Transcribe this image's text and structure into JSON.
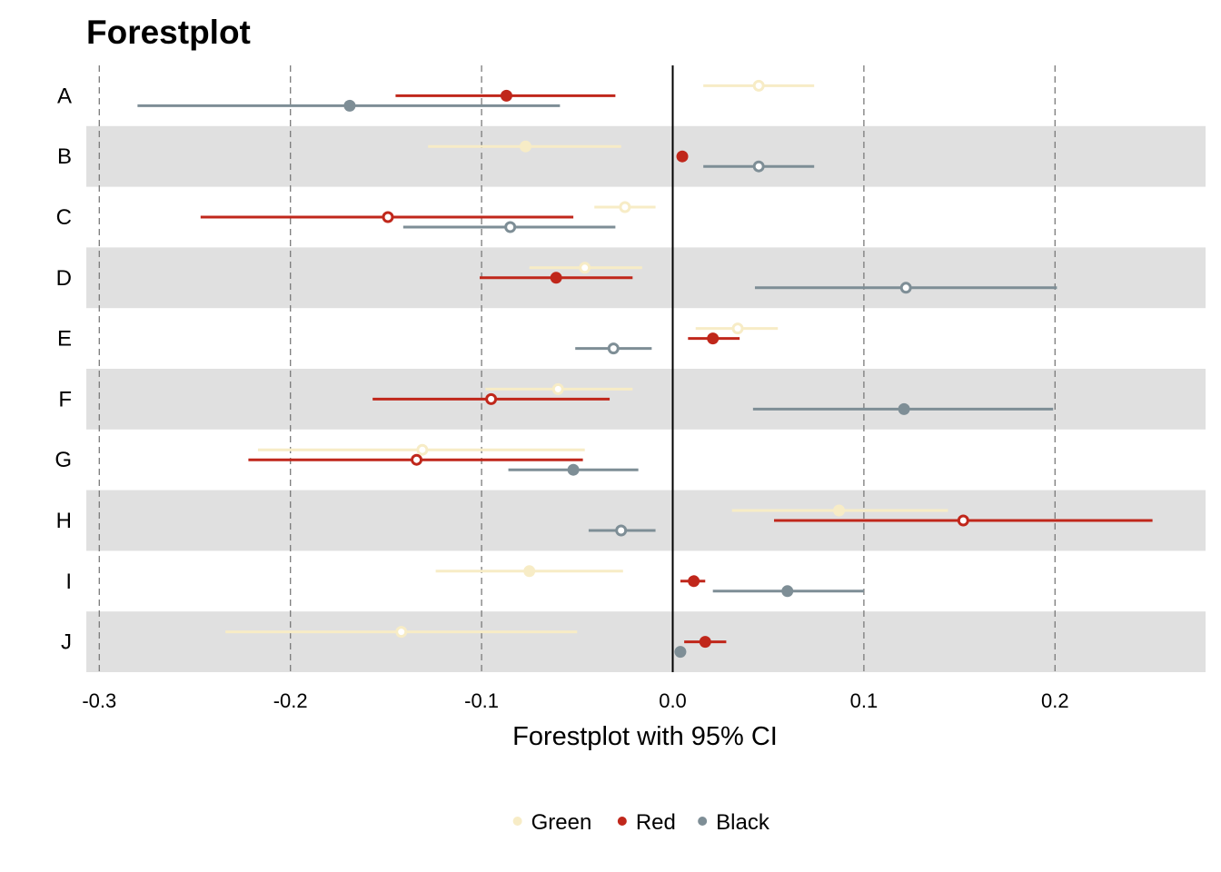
{
  "chart_data": {
    "type": "forestplot",
    "title": "Forestplot",
    "xlabel": "Forestplot with 95% CI",
    "ylabel": "",
    "xlim": [
      -0.307,
      0.278
    ],
    "x_ticks": [
      -0.3,
      -0.2,
      -0.1,
      0.0,
      0.1,
      0.2
    ],
    "x_tick_labels": [
      "-0.3",
      "-0.2",
      "-0.1",
      "0.0",
      "0.1",
      "0.2"
    ],
    "reference_line": 0.0,
    "grid": "dashed vertical lines at major ticks",
    "alternating_row_bands": true,
    "band_color": "#e0e0e0",
    "legend_position": "bottom",
    "categories": [
      "A",
      "B",
      "C",
      "D",
      "E",
      "F",
      "G",
      "H",
      "I",
      "J"
    ],
    "series": [
      {
        "name": "Green",
        "color": "#f7ecc6",
        "points": [
          {
            "estimate": 0.045,
            "lower": 0.016,
            "upper": 0.074,
            "significant": false
          },
          {
            "estimate": -0.077,
            "lower": -0.128,
            "upper": -0.027,
            "significant": true
          },
          {
            "estimate": -0.025,
            "lower": -0.041,
            "upper": -0.009,
            "significant": false
          },
          {
            "estimate": -0.046,
            "lower": -0.075,
            "upper": -0.016,
            "significant": false
          },
          {
            "estimate": 0.034,
            "lower": 0.012,
            "upper": 0.055,
            "significant": false
          },
          {
            "estimate": -0.06,
            "lower": -0.098,
            "upper": -0.021,
            "significant": false
          },
          {
            "estimate": -0.131,
            "lower": -0.217,
            "upper": -0.046,
            "significant": false
          },
          {
            "estimate": 0.087,
            "lower": 0.031,
            "upper": 0.144,
            "significant": true
          },
          {
            "estimate": -0.075,
            "lower": -0.124,
            "upper": -0.026,
            "significant": true
          },
          {
            "estimate": -0.142,
            "lower": -0.234,
            "upper": -0.05,
            "significant": false
          }
        ]
      },
      {
        "name": "Red",
        "color": "#c0271b",
        "points": [
          {
            "estimate": -0.087,
            "lower": -0.145,
            "upper": -0.03,
            "significant": true
          },
          {
            "estimate": 0.005,
            "lower": 0.005,
            "upper": 0.005,
            "significant": true
          },
          {
            "estimate": -0.149,
            "lower": -0.247,
            "upper": -0.052,
            "significant": false
          },
          {
            "estimate": -0.061,
            "lower": -0.101,
            "upper": -0.021,
            "significant": true
          },
          {
            "estimate": 0.021,
            "lower": 0.008,
            "upper": 0.035,
            "significant": true
          },
          {
            "estimate": -0.095,
            "lower": -0.157,
            "upper": -0.033,
            "significant": false
          },
          {
            "estimate": -0.134,
            "lower": -0.222,
            "upper": -0.047,
            "significant": false
          },
          {
            "estimate": 0.152,
            "lower": 0.053,
            "upper": 0.251,
            "significant": false
          },
          {
            "estimate": 0.011,
            "lower": 0.004,
            "upper": 0.017,
            "significant": true
          },
          {
            "estimate": 0.017,
            "lower": 0.006,
            "upper": 0.028,
            "significant": true
          }
        ]
      },
      {
        "name": "Black",
        "color": "#7e8e96",
        "points": [
          {
            "estimate": -0.169,
            "lower": -0.28,
            "upper": -0.059,
            "significant": true
          },
          {
            "estimate": 0.045,
            "lower": 0.016,
            "upper": 0.074,
            "significant": false
          },
          {
            "estimate": -0.085,
            "lower": -0.141,
            "upper": -0.03,
            "significant": false
          },
          {
            "estimate": 0.122,
            "lower": 0.043,
            "upper": 0.201,
            "significant": false
          },
          {
            "estimate": -0.031,
            "lower": -0.051,
            "upper": -0.011,
            "significant": false
          },
          {
            "estimate": 0.121,
            "lower": 0.042,
            "upper": 0.199,
            "significant": true
          },
          {
            "estimate": -0.052,
            "lower": -0.086,
            "upper": -0.018,
            "significant": true
          },
          {
            "estimate": -0.027,
            "lower": -0.044,
            "upper": -0.009,
            "significant": false
          },
          {
            "estimate": 0.06,
            "lower": 0.021,
            "upper": 0.1,
            "significant": true
          },
          {
            "estimate": 0.004,
            "lower": 0.004,
            "upper": 0.004,
            "significant": true
          }
        ]
      }
    ]
  }
}
